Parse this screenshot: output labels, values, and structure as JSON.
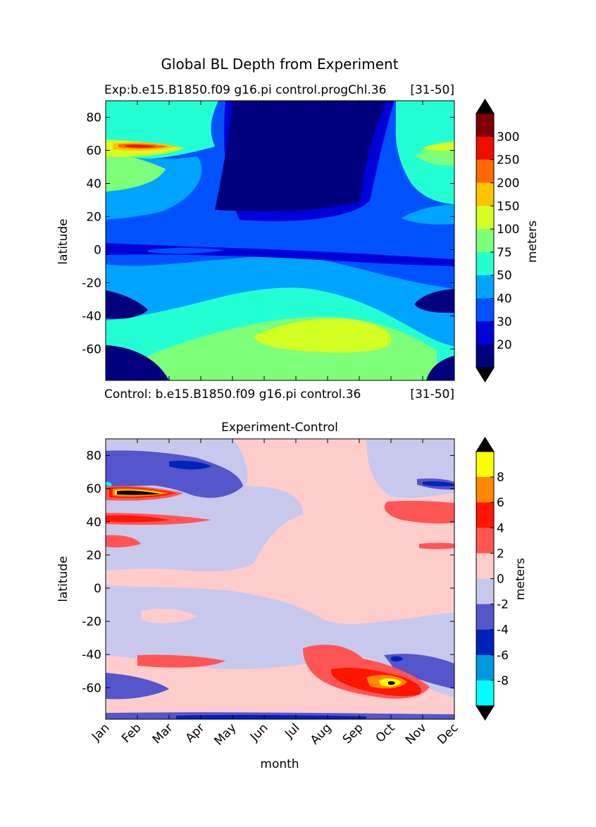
{
  "figure": {
    "suptitle": "Global BL Depth from Experiment"
  },
  "chart_data": [
    {
      "type": "heatmap",
      "name": "experiment-panel",
      "title_left": "Exp:b.e15.B1850.f09 g16.pi control.progChl.36",
      "title_right": "[31-50]",
      "footer_left": "Control: b.e15.B1850.f09 g16.pi control.36",
      "footer_right": "[31-50]",
      "ylabel": "latitude",
      "yticks": [
        "80",
        "60",
        "40",
        "20",
        "0",
        "-20",
        "-40",
        "-60"
      ],
      "ytick_values": [
        80,
        60,
        40,
        20,
        0,
        -20,
        -40,
        -60
      ],
      "ylim": [
        -79,
        90
      ],
      "xlim": [
        0,
        11
      ],
      "colorbar": {
        "label": "meters",
        "levels": [
          "20",
          "30",
          "40",
          "50",
          "75",
          "100",
          "150",
          "200",
          "250",
          "300"
        ],
        "colors": [
          "#00007f",
          "#0000d8",
          "#0052ff",
          "#00a4ff",
          "#23ffd3",
          "#7dff79",
          "#d3ff23",
          "#ffc400",
          "#ff6800",
          "#f00d00",
          "#7f0000"
        ],
        "over_color": "#000000",
        "under_color": "#000000"
      }
    },
    {
      "type": "heatmap",
      "name": "difference-panel",
      "title": "Experiment-Control",
      "ylabel": "latitude",
      "xlabel": "month",
      "categories": [
        "Jan",
        "Feb",
        "Mar",
        "Apr",
        "May",
        "Jun",
        "Jul",
        "Aug",
        "Sep",
        "Oct",
        "Nov",
        "Dec"
      ],
      "yticks": [
        "80",
        "60",
        "40",
        "20",
        "0",
        "-20",
        "-40",
        "-60"
      ],
      "ytick_values": [
        80,
        60,
        40,
        20,
        0,
        -20,
        -40,
        -60
      ],
      "ylim": [
        -79,
        90
      ],
      "xlim": [
        0,
        11
      ],
      "colorbar": {
        "label": "meters",
        "levels": [
          "8",
          "6",
          "4",
          "2",
          "0",
          "-2",
          "-4",
          "-6",
          "-8"
        ],
        "colors": [
          "#ffff00",
          "#ff8800",
          "#ff1500",
          "#ff5555",
          "#ffcccc",
          "#c8c8ec",
          "#5555cc",
          "#0022bb",
          "#0099dd",
          "#00ffff"
        ],
        "over_color": "#000000",
        "under_color": "#000000"
      }
    }
  ]
}
